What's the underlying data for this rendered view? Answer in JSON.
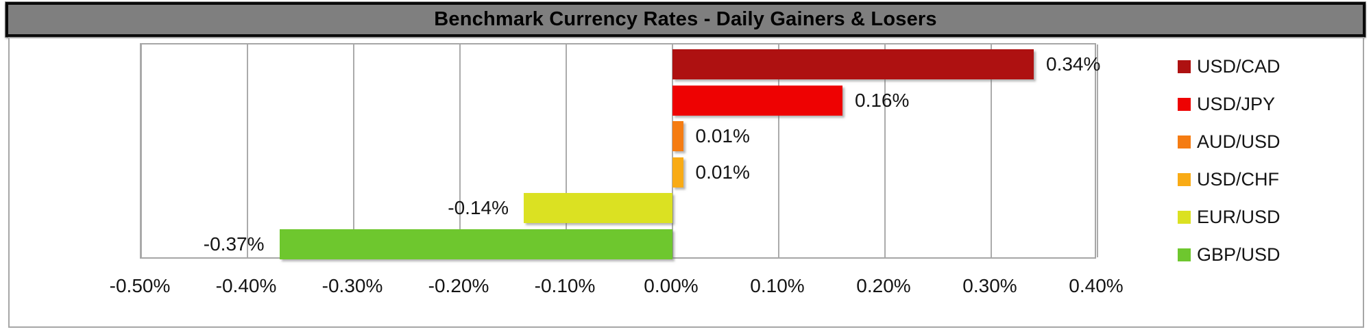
{
  "title_bar": {
    "bg_color": "#7f7f7f",
    "border_color": "#0a0a0a",
    "text_color": "#000000"
  },
  "chart_data": {
    "type": "bar",
    "orientation": "horizontal",
    "title": "Benchmark Currency Rates - Daily Gainers & Losers",
    "categories": [
      "USD/CAD",
      "USD/JPY",
      "AUD/USD",
      "USD/CHF",
      "EUR/USD",
      "GBP/USD"
    ],
    "values": [
      0.34,
      0.16,
      0.01,
      0.01,
      -0.14,
      -0.37
    ],
    "value_labels": [
      "0.34%",
      "0.16%",
      "0.01%",
      "0.01%",
      "-0.14%",
      "-0.37%"
    ],
    "bar_colors": [
      "#ae1111",
      "#ee0202",
      "#f57c12",
      "#f9ab15",
      "#dbe122",
      "#6ec72e"
    ],
    "xlabel": "",
    "ylabel": "",
    "xlim": [
      -0.5,
      0.4
    ],
    "x_tick_values": [
      -0.5,
      -0.4,
      -0.3,
      -0.2,
      -0.1,
      0.0,
      0.1,
      0.2,
      0.3,
      0.4
    ],
    "x_tick_labels": [
      "-0.50%",
      "-0.40%",
      "-0.30%",
      "-0.20%",
      "-0.10%",
      "0.00%",
      "0.10%",
      "0.20%",
      "0.30%",
      "0.40%"
    ],
    "grid": true,
    "gridline_color": "#ababab",
    "legend_position": "right",
    "legend": [
      {
        "label": "USD/CAD",
        "color": "#ae1111"
      },
      {
        "label": "USD/JPY",
        "color": "#ee0202"
      },
      {
        "label": "AUD/USD",
        "color": "#f57c12"
      },
      {
        "label": "USD/CHF",
        "color": "#f9ab15"
      },
      {
        "label": "EUR/USD",
        "color": "#dbe122"
      },
      {
        "label": "GBP/USD",
        "color": "#6ec72e"
      }
    ]
  }
}
